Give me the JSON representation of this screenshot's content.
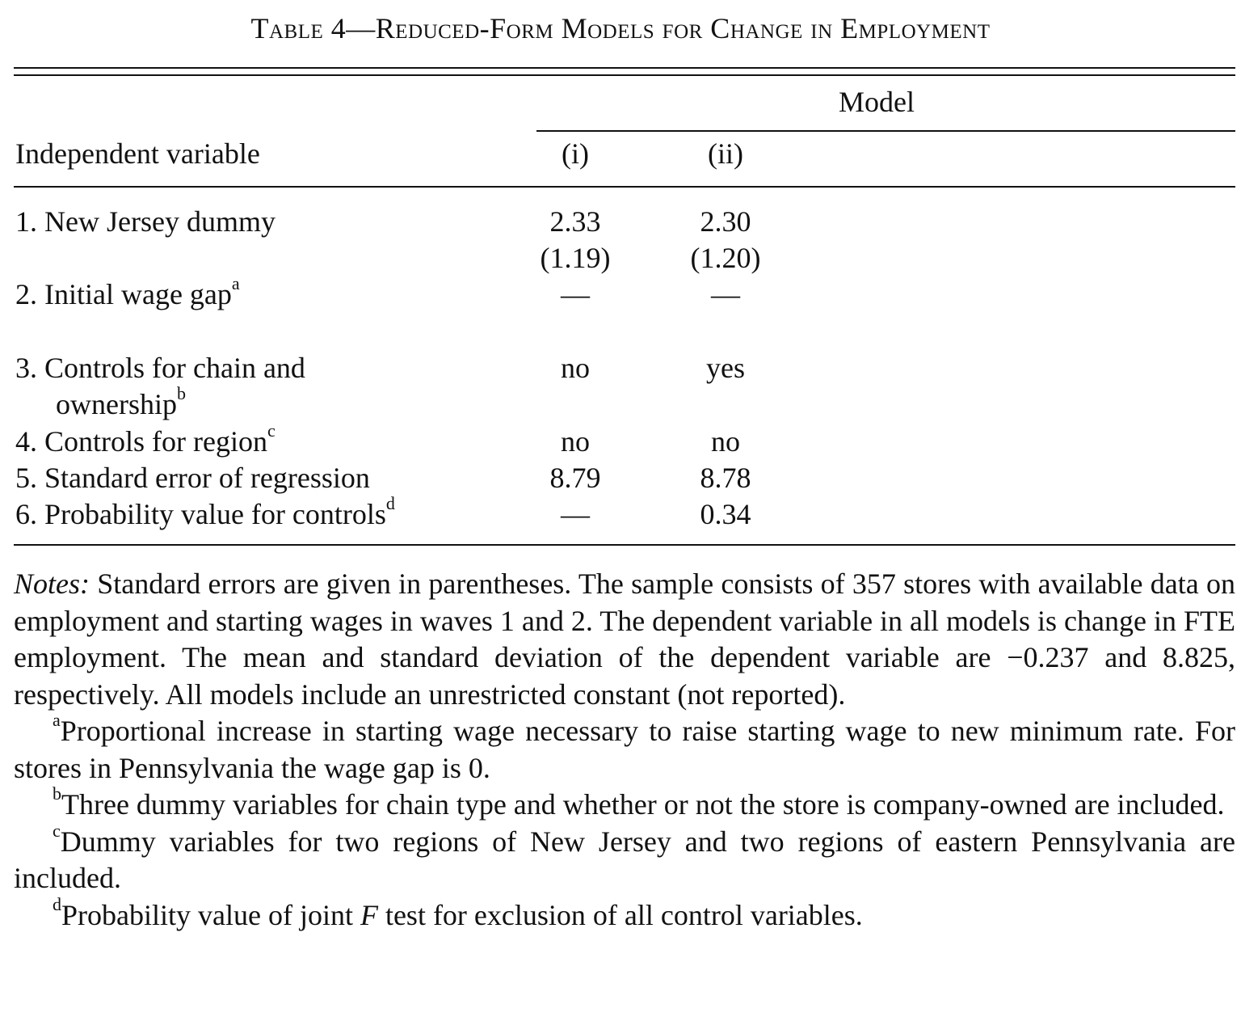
{
  "table": {
    "title": "Table 4—Reduced-Form Models for Change in Employment",
    "model_header": "Model",
    "column_header_variable": "Independent variable",
    "columns": [
      "(i)",
      "(ii)"
    ],
    "rows": [
      {
        "label": "1. New Jersey dummy",
        "sup": "",
        "values": [
          "2.33",
          "2.30"
        ],
        "se": [
          "(1.19)",
          "(1.20)"
        ]
      },
      {
        "label": "2. Initial wage gap",
        "sup": "a",
        "values": [
          "—",
          "—"
        ]
      },
      {
        "label": "3. Controls for chain and",
        "label_cont": "ownership",
        "sup": "b",
        "values": [
          "no",
          "yes"
        ]
      },
      {
        "label": "4. Controls for region",
        "sup": "c",
        "values": [
          "no",
          "no"
        ]
      },
      {
        "label": "5. Standard error of regression",
        "sup": "",
        "values": [
          "8.79",
          "8.78"
        ]
      },
      {
        "label": "6. Probability value for controls",
        "sup": "d",
        "values": [
          "—",
          "0.34"
        ]
      }
    ]
  },
  "notes": {
    "lead": "Notes:",
    "body": "Standard errors are given in parentheses. The sample consists of 357 stores with available data on employment and starting wages in waves 1 and 2. The dependent variable in all models is change in FTE employment. The mean and standard deviation of the dependent variable are −0.237 and 8.825, respectively. All models include an unrestricted constant (not reported).",
    "footnotes": [
      {
        "mark": "a",
        "text": "Proportional increase in starting wage necessary to raise starting wage to new minimum rate. For stores in Pennsylvania the wage gap is 0."
      },
      {
        "mark": "b",
        "text": "Three dummy variables for chain type and whether or not the store is company-owned are included."
      },
      {
        "mark": "c",
        "text": "Dummy variables for two regions of New Jersey and two regions of eastern Pennsylvania are included."
      },
      {
        "mark": "d",
        "text_pre": "Probability value of joint ",
        "text_italic": "F",
        "text_post": " test for exclusion of all control variables."
      }
    ]
  }
}
